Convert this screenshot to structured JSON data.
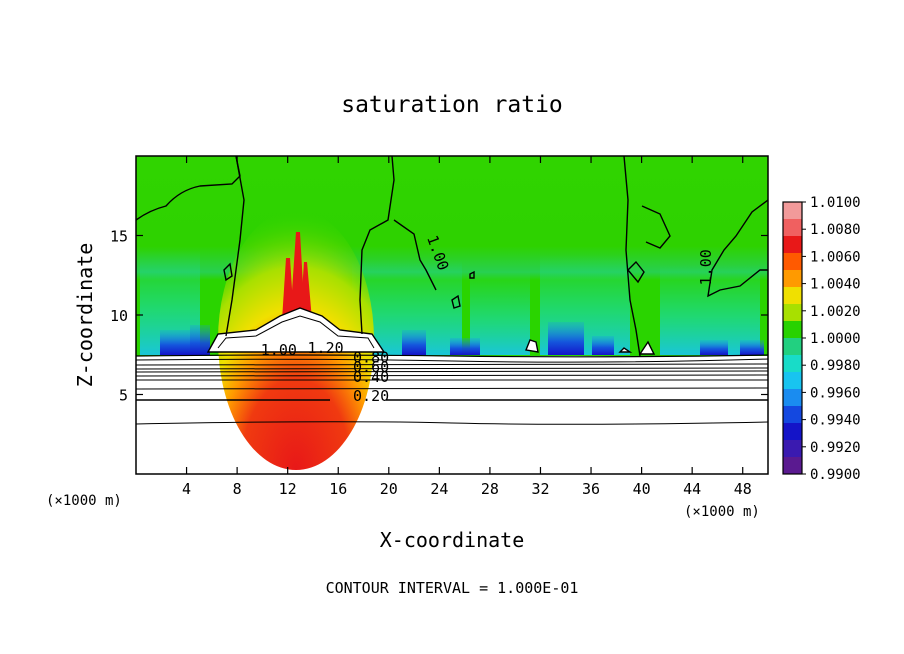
{
  "chart_data": {
    "type": "heatmap",
    "title": "saturation ratio",
    "xlabel": "X-coordinate",
    "ylabel": "Z-coordinate",
    "x_unit_left": "(×1000 m)",
    "x_unit_right": "(×1000 m)",
    "footer": "CONTOUR INTERVAL = 1.000E-01",
    "xlim": [
      0,
      50
    ],
    "ylim": [
      0,
      20
    ],
    "x_ticks": [
      4,
      8,
      12,
      16,
      20,
      24,
      28,
      32,
      36,
      40,
      44,
      48
    ],
    "y_ticks": [
      5,
      10,
      15
    ],
    "colorbar": {
      "range": [
        0.99,
        1.01
      ],
      "ticks": [
        "1.0100",
        "1.0080",
        "1.0060",
        "1.0040",
        "1.0020",
        "1.0000",
        "0.9980",
        "0.9960",
        "0.9940",
        "0.9920",
        "0.9900"
      ],
      "colors": [
        "#f29a9a",
        "#f06060",
        "#e81818",
        "#ff5a00",
        "#ff9a00",
        "#f0e000",
        "#a8e000",
        "#28d200",
        "#22d080",
        "#18dcc8",
        "#18c4f0",
        "#1a8cf0",
        "#1448e0",
        "#1414c8",
        "#3a1ab0",
        "#5a1a90"
      ]
    },
    "contour_labels": [
      {
        "text": "1.00",
        "x": 11.3,
        "z": 7.5
      },
      {
        "text": "1.20",
        "x": 15.0,
        "z": 7.6
      },
      {
        "text": "0.80",
        "x": 18.6,
        "z": 7.0
      },
      {
        "text": "0.60",
        "x": 18.6,
        "z": 6.4
      },
      {
        "text": "0.40",
        "x": 18.6,
        "z": 5.8
      },
      {
        "text": "0.20",
        "x": 18.6,
        "z": 4.6
      },
      {
        "text": "1.00",
        "x": 23.5,
        "z": 13.8
      },
      {
        "text": "1.00",
        "x": 45.5,
        "z": 13.0
      }
    ]
  }
}
